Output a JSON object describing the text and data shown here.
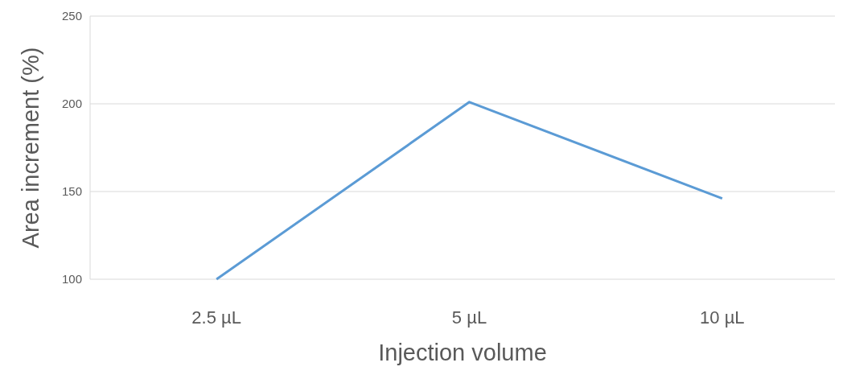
{
  "chart_data": {
    "type": "line",
    "xlabel": "Injection volume",
    "ylabel": "Area increment (%)",
    "categories": [
      "2.5 µL",
      "5 µL",
      "10 µL"
    ],
    "series": [
      {
        "color": "#5b9bd5",
        "values": [
          100,
          201,
          146
        ]
      }
    ],
    "ylim": [
      100,
      250
    ],
    "yticks": [
      100,
      150,
      200,
      250
    ],
    "grid": "y",
    "marker": "none",
    "line_style": "solid"
  }
}
